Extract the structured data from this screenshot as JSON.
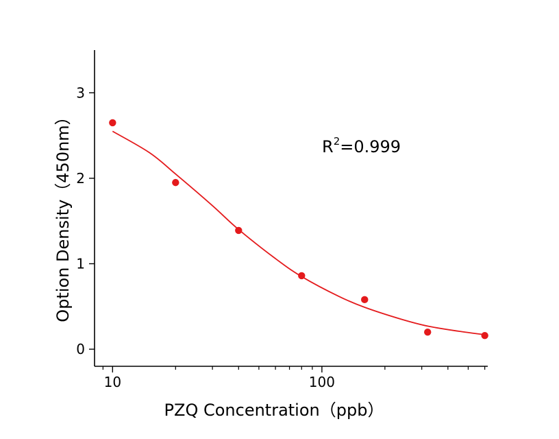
{
  "chart_data": {
    "type": "scatter",
    "xlabel": "PZQ Concentration（ppb）",
    "ylabel": "Option Density（450nm）",
    "xscale": "log",
    "xlim": [
      8.2,
      620
    ],
    "ylim": [
      -0.2,
      3.5
    ],
    "x_ticks": [
      10,
      100
    ],
    "x_tick_labels": [
      "10",
      "100"
    ],
    "y_ticks": [
      0,
      1,
      2,
      3
    ],
    "y_tick_labels": [
      "0",
      "1",
      "2",
      "3"
    ],
    "grid": false,
    "series": [
      {
        "color": "#e41a1c",
        "points": [
          {
            "x": 10,
            "y": 2.65
          },
          {
            "x": 20,
            "y": 1.95
          },
          {
            "x": 40,
            "y": 1.39
          },
          {
            "x": 80,
            "y": 0.86
          },
          {
            "x": 160,
            "y": 0.58
          },
          {
            "x": 320,
            "y": 0.2
          },
          {
            "x": 600,
            "y": 0.16
          }
        ]
      }
    ],
    "fit_curve": {
      "color": "#e41a1c",
      "points": [
        {
          "x": 10,
          "y": 2.55
        },
        {
          "x": 15,
          "y": 2.3
        },
        {
          "x": 20,
          "y": 2.05
        },
        {
          "x": 30,
          "y": 1.68
        },
        {
          "x": 40,
          "y": 1.4
        },
        {
          "x": 60,
          "y": 1.06
        },
        {
          "x": 80,
          "y": 0.85
        },
        {
          "x": 120,
          "y": 0.62
        },
        {
          "x": 160,
          "y": 0.49
        },
        {
          "x": 240,
          "y": 0.35
        },
        {
          "x": 320,
          "y": 0.27
        },
        {
          "x": 450,
          "y": 0.21
        },
        {
          "x": 600,
          "y": 0.17
        }
      ]
    },
    "annotation": {
      "base": "R",
      "sup": "2",
      "rest": "=0.999"
    }
  }
}
